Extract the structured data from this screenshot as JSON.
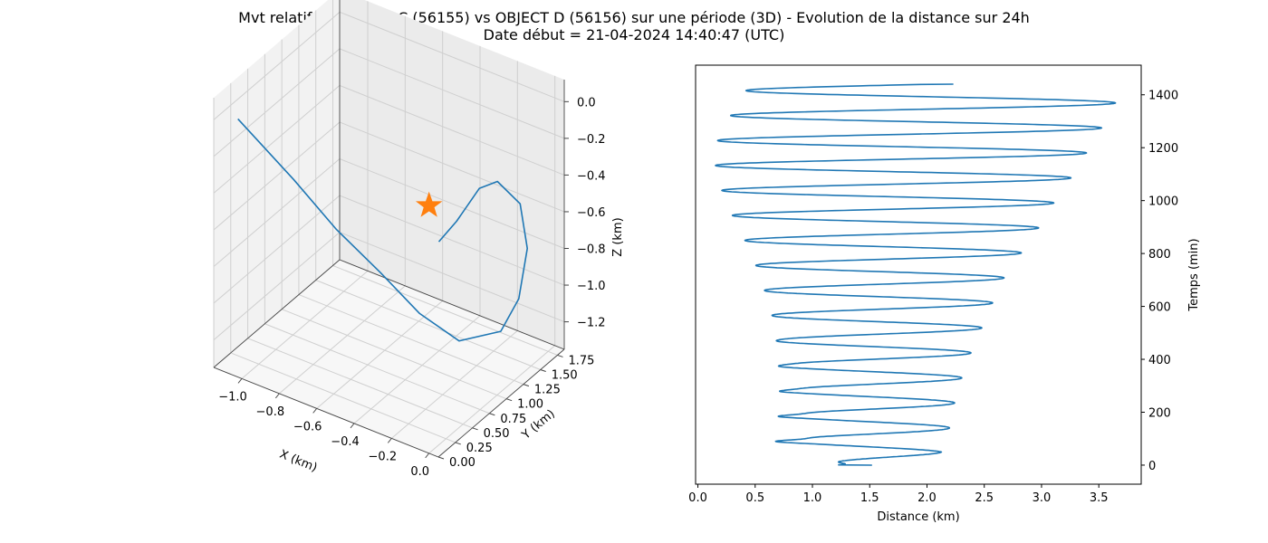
{
  "figure": {
    "title_line1": "Mvt relatif de OBJECT C (56155) vs OBJECT D (56156) sur une période (3D) - Evolution de la distance sur 24h",
    "title_line2": "Date début = 21-04-2024 14:40:47 (UTC)"
  },
  "chart_data": [
    {
      "type": "line",
      "projection": "3d",
      "xlabel": "X (km)",
      "ylabel": "Y (km)",
      "zlabel": "Z (km)",
      "xlim": [
        -1.15,
        0.05
      ],
      "ylim": [
        0.0,
        1.85
      ],
      "zlim": [
        -1.35,
        0.12
      ],
      "x_ticks": [
        -1.0,
        -0.8,
        -0.6,
        -0.4,
        -0.2,
        0.0
      ],
      "x_tick_labels": [
        "−1.0",
        "−0.8",
        "−0.6",
        "−0.4",
        "−0.2",
        "0.0"
      ],
      "y_ticks": [
        0.0,
        0.25,
        0.5,
        0.75,
        1.0,
        1.25,
        1.5,
        1.75
      ],
      "y_tick_labels": [
        "0.00",
        "0.25",
        "0.50",
        "0.75",
        "1.00",
        "1.25",
        "1.50",
        "1.75"
      ],
      "z_ticks": [
        0.0,
        -0.2,
        -0.4,
        -0.6,
        -0.8,
        -1.0,
        -1.2
      ],
      "z_tick_labels": [
        "0.0",
        "−0.2",
        "−0.4",
        "−0.6",
        "−0.8",
        "−1.0",
        "−1.2"
      ],
      "grid": true,
      "series": [
        {
          "color": "#1f77b4",
          "points": [
            [
              -1.05,
              0.08,
              0.02
            ],
            [
              -0.86,
              0.38,
              -0.33
            ],
            [
              -0.72,
              0.62,
              -0.62
            ],
            [
              -0.58,
              0.88,
              -0.88
            ],
            [
              -0.45,
              1.1,
              -1.12
            ],
            [
              -0.33,
              1.35,
              -1.3
            ],
            [
              -0.18,
              1.55,
              -1.25
            ],
            [
              -0.12,
              1.65,
              -1.08
            ],
            [
              -0.1,
              1.72,
              -0.82
            ],
            [
              -0.16,
              1.78,
              -0.62
            ],
            [
              -0.26,
              1.72,
              -0.52
            ],
            [
              -0.32,
              1.62,
              -0.55
            ],
            [
              -0.38,
              1.45,
              -0.7
            ],
            [
              -0.42,
              1.3,
              -0.78
            ]
          ]
        }
      ],
      "marker": {
        "shape": "star",
        "color": "#ff7f0e",
        "point": [
          0.0,
          0.0,
          0.0
        ]
      }
    },
    {
      "type": "line",
      "xlabel": "Distance (km)",
      "ylabel": "Temps (min)",
      "xlim": [
        -0.02,
        3.87
      ],
      "ylim": [
        -72,
        1512
      ],
      "x_ticks": [
        0.0,
        0.5,
        1.0,
        1.5,
        2.0,
        2.5,
        3.0,
        3.5
      ],
      "x_tick_labels": [
        "0.0",
        "0.5",
        "1.0",
        "1.5",
        "2.0",
        "2.5",
        "3.0",
        "3.5"
      ],
      "y_ticks": [
        0,
        200,
        400,
        600,
        800,
        1000,
        1200,
        1400
      ],
      "y_tick_labels": [
        "0",
        "200",
        "400",
        "600",
        "800",
        "1000",
        "1200",
        "1400"
      ],
      "yaxis_position": "right",
      "grid": false,
      "series": [
        {
          "color": "#1f77b4",
          "t_max": 1440,
          "period_min": 94.5,
          "envelope_t": [
            0,
            50,
            100,
            150,
            200,
            300,
            400,
            500,
            600,
            700,
            800,
            900,
            1000,
            1100,
            1200,
            1300,
            1350,
            1410,
            1440
          ],
          "envelope_min": [
            1.2,
            0.8,
            0.78,
            0.78,
            0.78,
            0.76,
            0.72,
            0.68,
            0.63,
            0.55,
            0.47,
            0.35,
            0.24,
            0.16,
            0.14,
            0.26,
            0.32,
            0.4,
            0.5
          ],
          "envelope_max": [
            1.52,
            2.15,
            2.18,
            2.2,
            2.22,
            2.28,
            2.36,
            2.46,
            2.56,
            2.66,
            2.82,
            2.98,
            3.12,
            3.28,
            3.42,
            3.56,
            3.62,
            3.7,
            3.55
          ],
          "start_distance": 1.52,
          "end_distance": 2.23
        }
      ]
    }
  ]
}
